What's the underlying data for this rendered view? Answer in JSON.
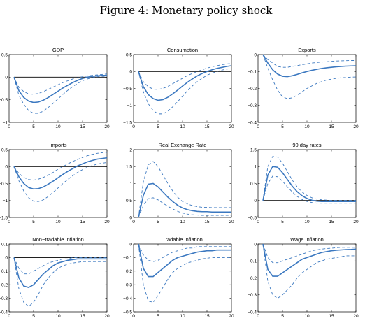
{
  "figure": {
    "title": "Figure 4:  Monetary policy shock"
  },
  "colors": {
    "line": "#3b78c0",
    "axis": "#000000",
    "zero_line": "#000000"
  },
  "chart_data": [
    {
      "type": "line",
      "title": "GDP",
      "xlim": [
        0,
        20
      ],
      "xticks": [
        "0",
        "5",
        "10",
        "15",
        "20"
      ],
      "ylim": [
        -1,
        0.5
      ],
      "yticks": [
        "-1",
        "-0.5",
        "0",
        "0.5"
      ],
      "zero_line": true,
      "grid": false,
      "x": [
        1,
        2,
        3,
        4,
        5,
        6,
        7,
        8,
        9,
        10,
        11,
        12,
        13,
        14,
        15,
        16,
        17,
        18,
        19,
        20
      ],
      "series": [
        {
          "role": "upper",
          "values": [
            0,
            -0.22,
            -0.32,
            -0.37,
            -0.38,
            -0.36,
            -0.32,
            -0.27,
            -0.22,
            -0.17,
            -0.12,
            -0.08,
            -0.04,
            -0.01,
            0.01,
            0.03,
            0.04,
            0.05,
            0.06,
            0.07
          ]
        },
        {
          "role": "median",
          "values": [
            0,
            -0.3,
            -0.45,
            -0.53,
            -0.56,
            -0.55,
            -0.51,
            -0.45,
            -0.38,
            -0.31,
            -0.24,
            -0.18,
            -0.12,
            -0.07,
            -0.03,
            0,
            0.02,
            0.03,
            0.04,
            0.04
          ]
        },
        {
          "role": "lower",
          "values": [
            0,
            -0.4,
            -0.6,
            -0.74,
            -0.8,
            -0.8,
            -0.75,
            -0.67,
            -0.58,
            -0.48,
            -0.38,
            -0.29,
            -0.21,
            -0.14,
            -0.08,
            -0.04,
            -0.01,
            0.01,
            0.02,
            0.02
          ]
        }
      ]
    },
    {
      "type": "line",
      "title": "Consumption",
      "xlim": [
        0,
        20
      ],
      "xticks": [
        "0",
        "5",
        "10",
        "15",
        "20"
      ],
      "ylim": [
        -1.5,
        0.5
      ],
      "yticks": [
        "-1.5",
        "-1",
        "-0.5",
        "0",
        "0.5"
      ],
      "zero_line": true,
      "grid": false,
      "x": [
        1,
        2,
        3,
        4,
        5,
        6,
        7,
        8,
        9,
        10,
        11,
        12,
        13,
        14,
        15,
        16,
        17,
        18,
        19,
        20
      ],
      "series": [
        {
          "role": "upper",
          "values": [
            0,
            -0.3,
            -0.45,
            -0.52,
            -0.53,
            -0.5,
            -0.44,
            -0.36,
            -0.28,
            -0.2,
            -0.12,
            -0.06,
            0,
            0.05,
            0.1,
            0.14,
            0.17,
            0.2,
            0.22,
            0.24
          ]
        },
        {
          "role": "median",
          "values": [
            0,
            -0.45,
            -0.68,
            -0.8,
            -0.85,
            -0.83,
            -0.76,
            -0.66,
            -0.55,
            -0.43,
            -0.32,
            -0.22,
            -0.13,
            -0.06,
            0,
            0.05,
            0.09,
            0.12,
            0.15,
            0.17
          ]
        },
        {
          "role": "lower",
          "values": [
            0,
            -0.6,
            -0.95,
            -1.15,
            -1.25,
            -1.25,
            -1.17,
            -1.04,
            -0.89,
            -0.73,
            -0.57,
            -0.43,
            -0.3,
            -0.2,
            -0.11,
            -0.05,
            0,
            0.04,
            0.07,
            0.09
          ]
        }
      ]
    },
    {
      "type": "line",
      "title": "Exports",
      "xlim": [
        0,
        20
      ],
      "xticks": [
        "0",
        "5",
        "10",
        "15",
        "20"
      ],
      "ylim": [
        -0.4,
        0
      ],
      "yticks": [
        "-0.4",
        "-0.3",
        "-0.2",
        "-0.1",
        "0"
      ],
      "zero_line": false,
      "grid": false,
      "x": [
        1,
        2,
        3,
        4,
        5,
        6,
        7,
        8,
        9,
        10,
        11,
        12,
        13,
        14,
        15,
        16,
        17,
        18,
        19,
        20
      ],
      "series": [
        {
          "role": "upper",
          "values": [
            0,
            -0.03,
            -0.05,
            -0.07,
            -0.075,
            -0.075,
            -0.07,
            -0.065,
            -0.06,
            -0.055,
            -0.05,
            -0.047,
            -0.044,
            -0.042,
            -0.04,
            -0.038,
            -0.037,
            -0.036,
            -0.035,
            -0.035
          ]
        },
        {
          "role": "median",
          "values": [
            0,
            -0.05,
            -0.09,
            -0.115,
            -0.128,
            -0.13,
            -0.125,
            -0.117,
            -0.108,
            -0.1,
            -0.093,
            -0.087,
            -0.082,
            -0.078,
            -0.075,
            -0.072,
            -0.07,
            -0.068,
            -0.067,
            -0.066
          ]
        },
        {
          "role": "lower",
          "values": [
            0,
            -0.08,
            -0.15,
            -0.21,
            -0.25,
            -0.26,
            -0.255,
            -0.24,
            -0.22,
            -0.2,
            -0.185,
            -0.17,
            -0.16,
            -0.15,
            -0.145,
            -0.14,
            -0.137,
            -0.135,
            -0.133,
            -0.132
          ]
        }
      ]
    },
    {
      "type": "line",
      "title": "Imports",
      "xlim": [
        0,
        20
      ],
      "xticks": [
        "0",
        "5",
        "10",
        "15",
        "20"
      ],
      "ylim": [
        -1.5,
        0.5
      ],
      "yticks": [
        "-1.5",
        "-1",
        "-0.5",
        "0",
        "0.5"
      ],
      "zero_line": true,
      "grid": false,
      "x": [
        1,
        2,
        3,
        4,
        5,
        6,
        7,
        8,
        9,
        10,
        11,
        12,
        13,
        14,
        15,
        16,
        17,
        18,
        19,
        20
      ],
      "series": [
        {
          "role": "upper",
          "values": [
            0,
            -0.2,
            -0.32,
            -0.38,
            -0.4,
            -0.37,
            -0.32,
            -0.25,
            -0.17,
            -0.08,
            0,
            0.08,
            0.15,
            0.21,
            0.27,
            0.32,
            0.36,
            0.39,
            0.41,
            0.42
          ]
        },
        {
          "role": "median",
          "values": [
            0,
            -0.3,
            -0.5,
            -0.62,
            -0.66,
            -0.65,
            -0.6,
            -0.52,
            -0.43,
            -0.33,
            -0.23,
            -0.14,
            -0.06,
            0.02,
            0.08,
            0.14,
            0.18,
            0.22,
            0.24,
            0.26
          ]
        },
        {
          "role": "lower",
          "values": [
            0,
            -0.42,
            -0.72,
            -0.92,
            -1.02,
            -1.03,
            -0.98,
            -0.88,
            -0.76,
            -0.63,
            -0.5,
            -0.38,
            -0.27,
            -0.17,
            -0.09,
            -0.02,
            0.03,
            0.07,
            0.1,
            0.12
          ]
        }
      ]
    },
    {
      "type": "line",
      "title": "Real Exchange Rate",
      "xlim": [
        0,
        20
      ],
      "xticks": [
        "0",
        "5",
        "10",
        "15",
        "20"
      ],
      "ylim": [
        0,
        2
      ],
      "yticks": [
        "0",
        "0.5",
        "1",
        "1.5",
        "2"
      ],
      "zero_line": false,
      "grid": false,
      "x": [
        1,
        2,
        3,
        4,
        5,
        6,
        7,
        8,
        9,
        10,
        11,
        12,
        13,
        14,
        15,
        16,
        17,
        18,
        19,
        20
      ],
      "series": [
        {
          "role": "upper",
          "values": [
            0,
            1.05,
            1.55,
            1.65,
            1.5,
            1.25,
            1,
            0.78,
            0.6,
            0.47,
            0.4,
            0.35,
            0.32,
            0.3,
            0.3,
            0.29,
            0.29,
            0.29,
            0.29,
            0.29
          ]
        },
        {
          "role": "median",
          "values": [
            0,
            0.65,
            0.98,
            1,
            0.9,
            0.75,
            0.6,
            0.47,
            0.36,
            0.28,
            0.23,
            0.2,
            0.18,
            0.17,
            0.17,
            0.16,
            0.16,
            0.16,
            0.16,
            0.16
          ]
        },
        {
          "role": "lower",
          "values": [
            0,
            0.35,
            0.55,
            0.58,
            0.52,
            0.42,
            0.33,
            0.25,
            0.18,
            0.13,
            0.1,
            0.08,
            0.07,
            0.06,
            0.06,
            0.06,
            0.06,
            0.06,
            0.06,
            0.06
          ]
        }
      ]
    },
    {
      "type": "line",
      "title": "90 day rates",
      "xlim": [
        0,
        20
      ],
      "xticks": [
        "0",
        "5",
        "10",
        "15",
        "20"
      ],
      "ylim": [
        -0.5,
        1.5
      ],
      "yticks": [
        "-0.5",
        "0",
        "0.5",
        "1",
        "1.5"
      ],
      "zero_line": true,
      "grid": false,
      "x": [
        1,
        2,
        3,
        4,
        5,
        6,
        7,
        8,
        9,
        10,
        11,
        12,
        13,
        14,
        15,
        16,
        17,
        18,
        19,
        20
      ],
      "series": [
        {
          "role": "upper",
          "values": [
            0,
            1,
            1.3,
            1.28,
            1.1,
            0.85,
            0.6,
            0.4,
            0.25,
            0.15,
            0.08,
            0.04,
            0.02,
            0.01,
            0,
            0,
            0,
            0,
            0,
            0
          ]
        },
        {
          "role": "median",
          "values": [
            0,
            0.75,
            1,
            0.98,
            0.82,
            0.62,
            0.42,
            0.26,
            0.14,
            0.06,
            0.01,
            -0.02,
            -0.03,
            -0.03,
            -0.03,
            -0.03,
            -0.03,
            -0.03,
            -0.03,
            -0.03
          ]
        },
        {
          "role": "lower",
          "values": [
            0,
            0.5,
            0.72,
            0.7,
            0.57,
            0.4,
            0.25,
            0.12,
            0.03,
            -0.03,
            -0.06,
            -0.08,
            -0.08,
            -0.08,
            -0.08,
            -0.08,
            -0.08,
            -0.08,
            -0.08,
            -0.08
          ]
        }
      ]
    },
    {
      "type": "line",
      "title": "Non−tradable Inflation",
      "xlim": [
        0,
        20
      ],
      "xticks": [
        "0",
        "5",
        "10",
        "15",
        "20"
      ],
      "ylim": [
        -0.4,
        0.1
      ],
      "yticks": [
        "-0.4",
        "-0.3",
        "-0.2",
        "-0.1",
        "0",
        "0.1"
      ],
      "zero_line": true,
      "grid": false,
      "x": [
        1,
        2,
        3,
        4,
        5,
        6,
        7,
        8,
        9,
        10,
        11,
        12,
        13,
        14,
        15,
        16,
        17,
        18,
        19,
        20
      ],
      "series": [
        {
          "role": "upper",
          "values": [
            0,
            -0.08,
            -0.12,
            -0.12,
            -0.1,
            -0.08,
            -0.06,
            -0.04,
            -0.03,
            -0.02,
            -0.01,
            -0.01,
            0,
            0,
            0,
            0,
            0,
            0,
            0,
            0
          ]
        },
        {
          "role": "median",
          "values": [
            0,
            -0.15,
            -0.21,
            -0.22,
            -0.2,
            -0.16,
            -0.12,
            -0.09,
            -0.06,
            -0.04,
            -0.03,
            -0.02,
            -0.015,
            -0.01,
            -0.01,
            -0.01,
            -0.01,
            -0.01,
            -0.01,
            -0.01
          ]
        },
        {
          "role": "lower",
          "values": [
            0,
            -0.23,
            -0.33,
            -0.36,
            -0.33,
            -0.27,
            -0.2,
            -0.15,
            -0.11,
            -0.08,
            -0.06,
            -0.05,
            -0.04,
            -0.035,
            -0.03,
            -0.03,
            -0.03,
            -0.03,
            -0.03,
            -0.03
          ]
        }
      ]
    },
    {
      "type": "line",
      "title": "Tradable Inflation",
      "xlim": [
        0,
        20
      ],
      "xticks": [
        "0",
        "5",
        "10",
        "15",
        "20"
      ],
      "ylim": [
        -0.5,
        0
      ],
      "yticks": [
        "-0.5",
        "-0.4",
        "-0.3",
        "-0.2",
        "-0.1",
        "0"
      ],
      "zero_line": false,
      "grid": false,
      "x": [
        1,
        2,
        3,
        4,
        5,
        6,
        7,
        8,
        9,
        10,
        11,
        12,
        13,
        14,
        15,
        16,
        17,
        18,
        19,
        20
      ],
      "series": [
        {
          "role": "upper",
          "values": [
            0,
            -0.08,
            -0.12,
            -0.13,
            -0.12,
            -0.1,
            -0.08,
            -0.06,
            -0.05,
            -0.04,
            -0.03,
            -0.03,
            -0.02,
            -0.02,
            -0.02,
            -0.02,
            -0.02,
            -0.02,
            -0.02,
            -0.02
          ]
        },
        {
          "role": "median",
          "values": [
            0,
            -0.18,
            -0.24,
            -0.24,
            -0.21,
            -0.18,
            -0.15,
            -0.12,
            -0.1,
            -0.09,
            -0.08,
            -0.07,
            -0.06,
            -0.055,
            -0.05,
            -0.05,
            -0.045,
            -0.045,
            -0.045,
            -0.045
          ]
        },
        {
          "role": "lower",
          "values": [
            0,
            -0.3,
            -0.42,
            -0.43,
            -0.38,
            -0.32,
            -0.26,
            -0.21,
            -0.18,
            -0.16,
            -0.14,
            -0.13,
            -0.12,
            -0.11,
            -0.105,
            -0.1,
            -0.1,
            -0.1,
            -0.1,
            -0.1
          ]
        }
      ]
    },
    {
      "type": "line",
      "title": "Wage Inflation",
      "xlim": [
        0,
        20
      ],
      "xticks": [
        "0",
        "5",
        "10",
        "15",
        "20"
      ],
      "ylim": [
        -0.4,
        0
      ],
      "yticks": [
        "-0.4",
        "-0.3",
        "-0.2",
        "-0.1",
        "0"
      ],
      "zero_line": false,
      "grid": false,
      "x": [
        1,
        2,
        3,
        4,
        5,
        6,
        7,
        8,
        9,
        10,
        11,
        12,
        13,
        14,
        15,
        16,
        17,
        18,
        19,
        20
      ],
      "series": [
        {
          "role": "upper",
          "values": [
            0,
            -0.08,
            -0.11,
            -0.11,
            -0.1,
            -0.09,
            -0.08,
            -0.07,
            -0.06,
            -0.05,
            -0.04,
            -0.035,
            -0.03,
            -0.027,
            -0.025,
            -0.022,
            -0.02,
            -0.02,
            -0.02,
            -0.02
          ]
        },
        {
          "role": "median",
          "values": [
            0,
            -0.15,
            -0.19,
            -0.19,
            -0.17,
            -0.15,
            -0.13,
            -0.11,
            -0.09,
            -0.08,
            -0.07,
            -0.06,
            -0.05,
            -0.045,
            -0.04,
            -0.037,
            -0.035,
            -0.033,
            -0.032,
            -0.03
          ]
        },
        {
          "role": "lower",
          "values": [
            0,
            -0.22,
            -0.3,
            -0.32,
            -0.3,
            -0.27,
            -0.24,
            -0.2,
            -0.17,
            -0.15,
            -0.13,
            -0.11,
            -0.1,
            -0.09,
            -0.085,
            -0.08,
            -0.075,
            -0.07,
            -0.07,
            -0.07
          ]
        }
      ]
    }
  ]
}
